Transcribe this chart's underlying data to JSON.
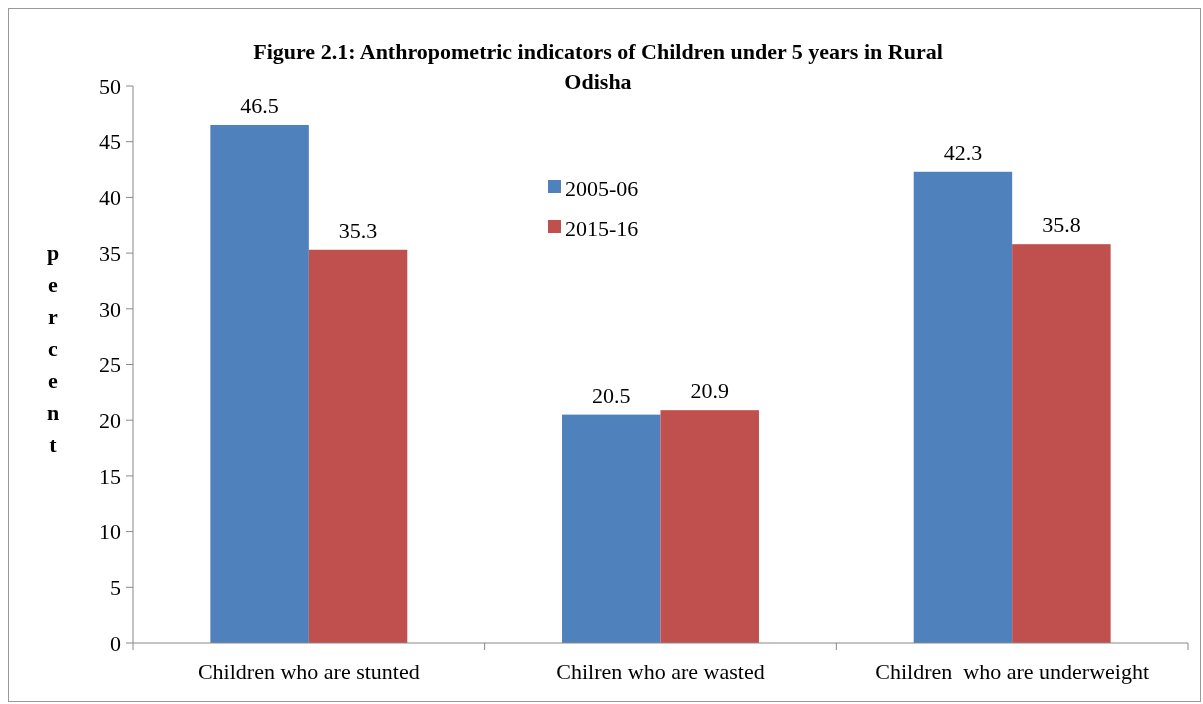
{
  "chart_data": {
    "type": "bar",
    "title": "Figure 2.1: Anthropometric indicators of Children under 5 years in Rural Odisha",
    "ylabel": "percent",
    "categories": [
      "Children who are stunted",
      "Chilren who are wasted",
      "Children  who are underweight"
    ],
    "series": [
      {
        "name": "2005-06",
        "color": "#4f81bd",
        "values": [
          46.5,
          20.5,
          42.3
        ]
      },
      {
        "name": "2015-16",
        "color": "#c0504d",
        "values": [
          35.3,
          20.9,
          35.8
        ]
      }
    ],
    "ylim": [
      0,
      50
    ],
    "yticks": [
      0,
      5,
      10,
      15,
      20,
      25,
      30,
      35,
      40,
      45,
      50
    ],
    "grid": false,
    "legend": "top",
    "data_labels": true
  }
}
